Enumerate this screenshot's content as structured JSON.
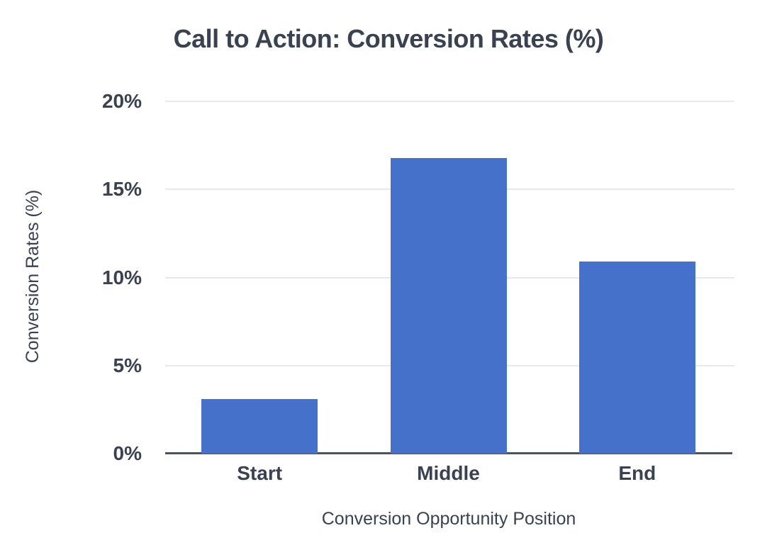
{
  "chart_data": {
    "type": "bar",
    "title": "Call to Action: Conversion Rates (%)",
    "xlabel": "Conversion Opportunity Position",
    "ylabel": "Conversion Rates (%)",
    "categories": [
      "Start",
      "Middle",
      "End"
    ],
    "values": [
      3.1,
      16.8,
      10.9
    ],
    "ylim": [
      0,
      20
    ],
    "yticks": [
      0,
      5,
      10,
      15,
      20
    ],
    "ytick_labels": [
      "0%",
      "5%",
      "10%",
      "15%",
      "20%"
    ],
    "grid": true,
    "legend": false,
    "colors": {
      "bar": "#4571ca",
      "text": "#3a4150",
      "gridline": "#e7e9ec",
      "axis_line": "#4c515b",
      "background": "#ffffff"
    }
  }
}
